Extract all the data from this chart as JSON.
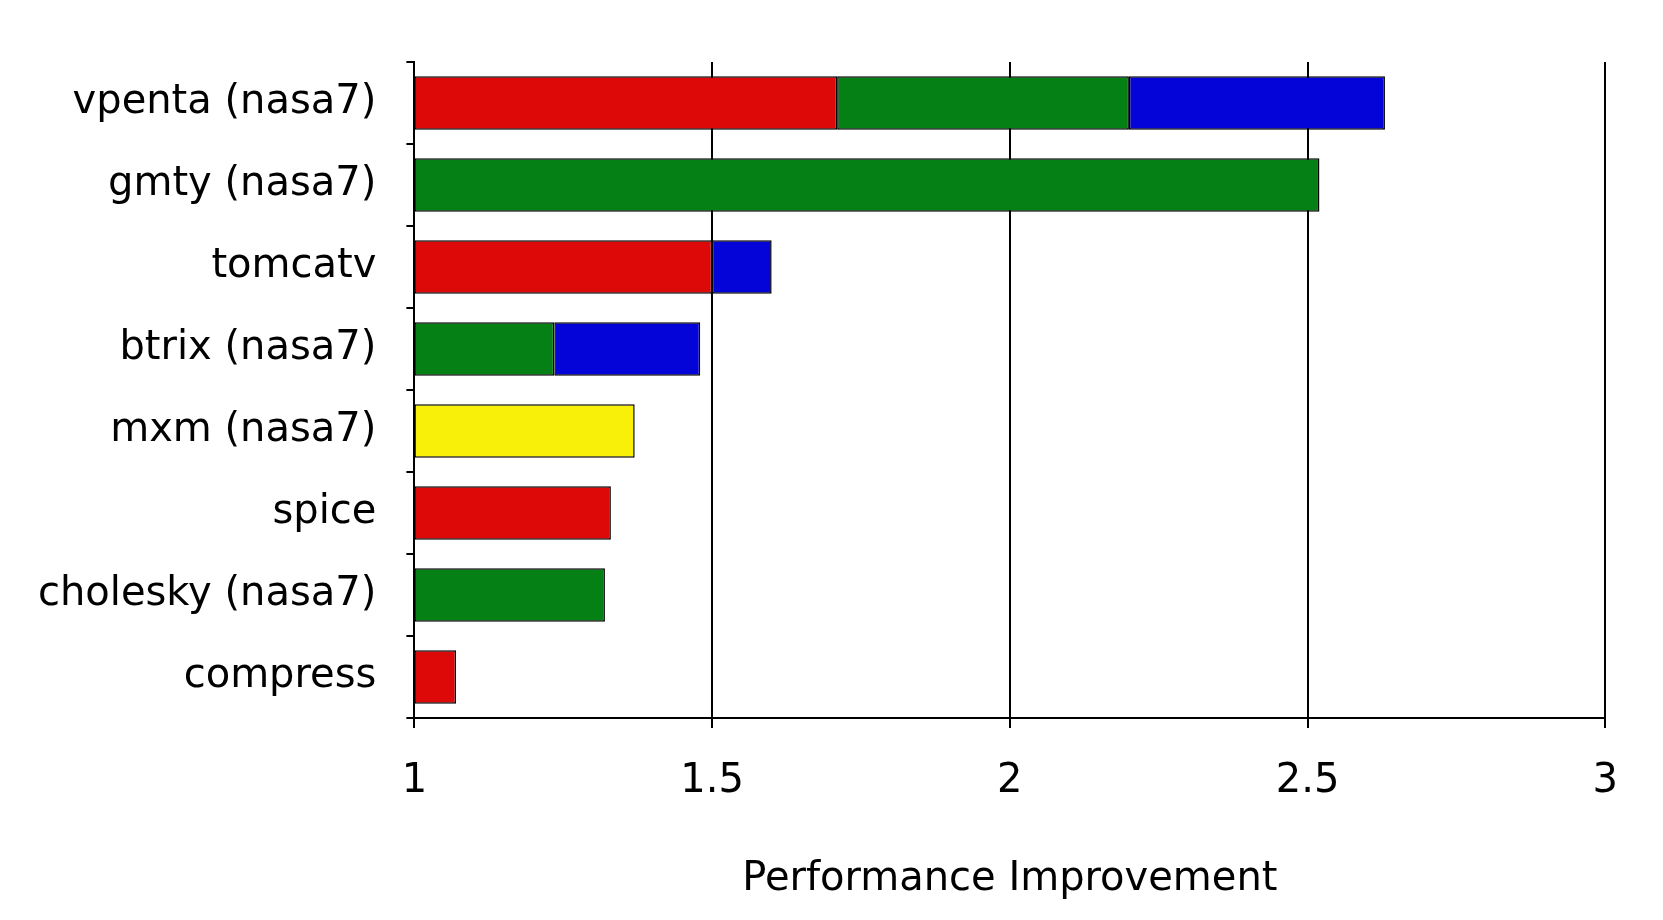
{
  "chart_data": {
    "type": "bar",
    "orientation": "horizontal",
    "xlabel": "Performance Improvement",
    "categories": [
      "vpenta (nasa7)",
      "gmty (nasa7)",
      "tomcatv",
      "btrix (nasa7)",
      "mxm (nasa7)",
      "spice",
      "cholesky (nasa7)",
      "compress"
    ],
    "series": [
      {
        "color": "#dd0808",
        "base": [
          1,
          null,
          1,
          null,
          null,
          1,
          null,
          1
        ],
        "values": [
          0.71,
          null,
          0.5,
          null,
          null,
          0.33,
          null,
          0.07
        ]
      },
      {
        "color": "#058015",
        "base": [
          1.71,
          1,
          null,
          1,
          null,
          null,
          1,
          null
        ],
        "values": [
          0.49,
          1.52,
          null,
          0.235,
          null,
          null,
          0.32,
          null
        ]
      },
      {
        "color": "#0404d8",
        "base": [
          2.2,
          null,
          1.5,
          1.235,
          null,
          null,
          null,
          null
        ],
        "values": [
          0.43,
          null,
          0.1,
          0.245,
          null,
          null,
          null,
          null
        ]
      },
      {
        "color": "#f8f008",
        "base": [
          null,
          null,
          null,
          null,
          1,
          null,
          null,
          null
        ],
        "values": [
          null,
          null,
          null,
          null,
          0.37,
          null,
          null,
          null
        ]
      }
    ],
    "xlim": [
      1,
      3
    ],
    "xticks": [
      1,
      1.5,
      2,
      2.5,
      3
    ],
    "grid": "x",
    "legend": false
  }
}
